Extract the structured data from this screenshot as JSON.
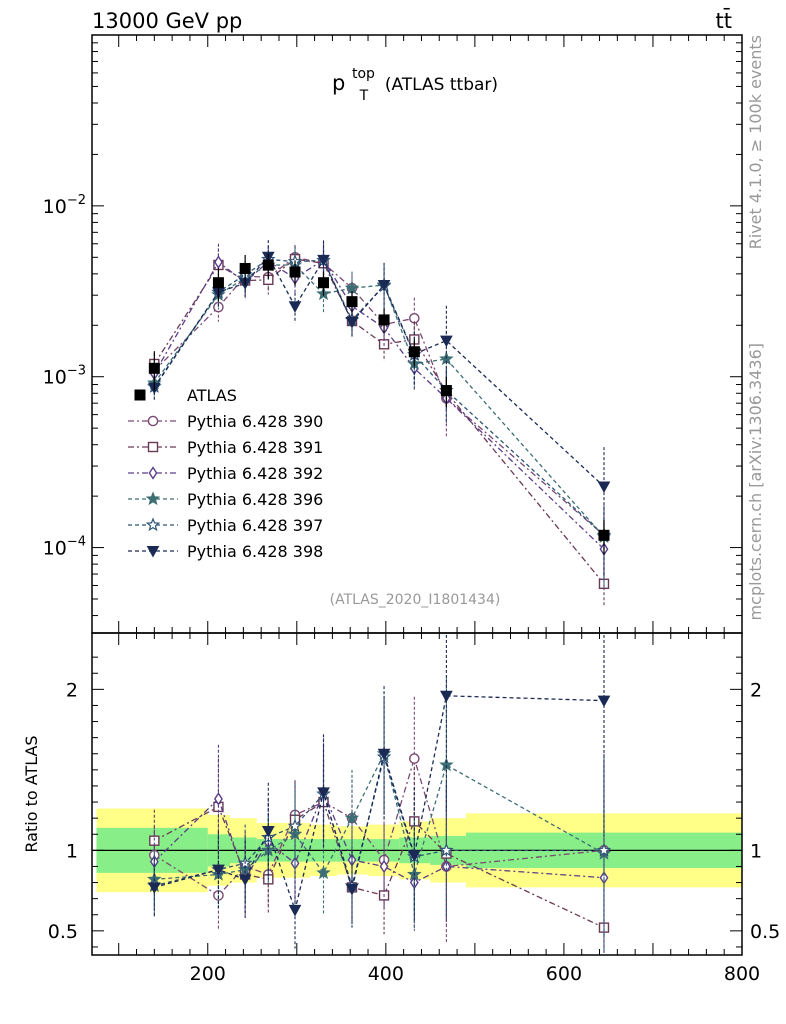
{
  "header": {
    "left": "13000 GeV pp",
    "right": "tt̄"
  },
  "side_labels": {
    "rivet": "Rivet 4.1.0, ≥ 100k events",
    "mcplots": "mcplots.cern.ch [arXiv:1306.3436]"
  },
  "chart_data": {
    "type": "scatter",
    "title_main": "p",
    "title_sup": "top",
    "title_sub": "T",
    "title_suffix": "(ATLAS ttbar)",
    "analysis_tag": "(ATLAS_2020_I1801434)",
    "xlim": [
      70,
      800
    ],
    "upper_ylim_log10": [
      -4.5,
      -1.0
    ],
    "upper_yticks": [
      {
        "value": 0.01,
        "base": "10",
        "exp": "−2"
      },
      {
        "value": 0.001,
        "base": "10",
        "exp": "−3"
      },
      {
        "value": 0.0001,
        "base": "10",
        "exp": "−4"
      }
    ],
    "ratio_ylabel": "Ratio to ATLAS",
    "ratio_ylim": [
      0.35,
      2.35
    ],
    "ratio_yticks": [
      {
        "value": 0.5,
        "label": "0.5"
      },
      {
        "value": 1,
        "label": "1"
      },
      {
        "value": 2,
        "label": "2"
      }
    ],
    "xticks": [
      {
        "value": 200,
        "label": "200"
      },
      {
        "value": 400,
        "label": "400"
      },
      {
        "value": 600,
        "label": "600"
      },
      {
        "value": 800,
        "label": "800"
      }
    ],
    "x": [
      140,
      212,
      242,
      268,
      298,
      330,
      362,
      398,
      432,
      468,
      645
    ],
    "bins": [
      [
        75,
        200
      ],
      [
        200,
        225
      ],
      [
        225,
        255
      ],
      [
        255,
        285
      ],
      [
        285,
        315
      ],
      [
        315,
        345
      ],
      [
        345,
        380
      ],
      [
        380,
        415
      ],
      [
        415,
        450
      ],
      [
        450,
        490
      ],
      [
        490,
        800
      ]
    ],
    "data": {
      "name": "ATLAS",
      "values": [
        0.00112,
        0.00355,
        0.0043,
        0.0045,
        0.0041,
        0.00355,
        0.00275,
        0.00215,
        0.0014,
        0.00083,
        0.000118
      ],
      "band_inner": [
        0.14,
        0.1,
        0.08,
        0.07,
        0.07,
        0.07,
        0.07,
        0.07,
        0.08,
        0.09,
        0.11
      ],
      "band_outer": [
        0.26,
        0.22,
        0.2,
        0.17,
        0.17,
        0.16,
        0.15,
        0.16,
        0.18,
        0.2,
        0.23
      ]
    },
    "series": [
      {
        "name": "Pythia 6.428 390",
        "marker": "circle-open",
        "color": "#7a4a73",
        "dash": "6,3,2,3",
        "ratio": [
          0.97,
          0.72,
          0.9,
          0.85,
          1.22,
          1.3,
          1.2,
          0.94,
          1.57,
          0.9,
          1.0
        ],
        "err": [
          0.15,
          0.18,
          0.18,
          0.16,
          0.18,
          0.2,
          0.2,
          0.25,
          0.32,
          0.4,
          0.5
        ]
      },
      {
        "name": "Pythia 6.428 391",
        "marker": "square-open",
        "color": "#6a3a55",
        "dash": "6,3,2,3",
        "ratio": [
          1.06,
          1.27,
          0.85,
          0.82,
          1.19,
          1.3,
          0.77,
          0.72,
          1.18,
          0.98,
          0.52
        ],
        "err": [
          0.16,
          0.25,
          0.2,
          0.18,
          0.2,
          0.22,
          0.18,
          0.2,
          0.28,
          0.35,
          0.25
        ]
      },
      {
        "name": "Pythia 6.428 392",
        "marker": "diamond-open",
        "color": "#5a3d8a",
        "dash": "6,3,2,3",
        "ratio": [
          0.93,
          1.32,
          0.83,
          1.05,
          0.92,
          1.36,
          0.94,
          0.9,
          0.8,
          0.9,
          0.83
        ],
        "err": [
          0.15,
          0.28,
          0.2,
          0.2,
          0.2,
          0.28,
          0.2,
          0.22,
          0.25,
          0.3,
          0.4
        ]
      },
      {
        "name": "Pythia 6.428 396",
        "marker": "star-full",
        "color": "#3d6e74",
        "dash": "4,3",
        "ratio": [
          0.82,
          0.85,
          0.88,
          1.0,
          1.1,
          0.86,
          1.2,
          1.6,
          0.85,
          1.53,
          0.98
        ],
        "err": [
          0.15,
          0.18,
          0.18,
          0.18,
          0.22,
          0.22,
          0.25,
          0.3,
          0.28,
          0.45,
          0.5
        ]
      },
      {
        "name": "Pythia 6.428 397",
        "marker": "star-open",
        "color": "#2e5577",
        "dash": "4,3",
        "ratio": [
          0.78,
          0.88,
          0.92,
          1.08,
          1.15,
          1.35,
          0.78,
          1.58,
          0.96,
          1.0,
          1.0
        ],
        "err": [
          0.15,
          0.2,
          0.2,
          0.2,
          0.22,
          0.25,
          0.2,
          0.3,
          0.28,
          0.35,
          0.45
        ]
      },
      {
        "name": "Pythia 6.428 398",
        "marker": "triangle-down-full",
        "color": "#1a2a55",
        "dash": "4,3",
        "ratio": [
          0.77,
          0.88,
          0.82,
          1.12,
          0.63,
          1.36,
          0.76,
          1.6,
          0.97,
          1.96,
          1.93
        ],
        "err": [
          0.15,
          0.2,
          0.2,
          0.25,
          0.2,
          0.3,
          0.2,
          0.35,
          0.35,
          0.6,
          0.7
        ]
      }
    ]
  }
}
